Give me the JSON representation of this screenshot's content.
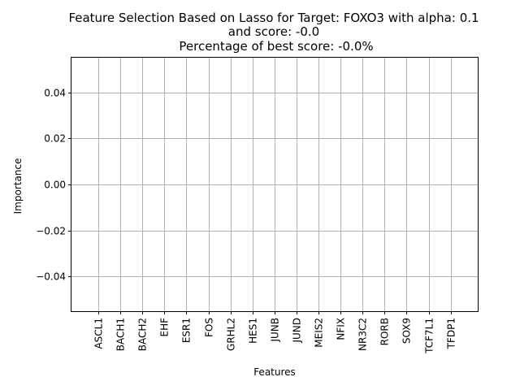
{
  "chart_data": {
    "type": "bar",
    "title_lines": [
      "Feature Selection Based on Lasso for Target: FOXO3 with alpha: 0.1",
      "and score: -0.0",
      "Percentage of best score: -0.0%"
    ],
    "xlabel": "Features",
    "ylabel": "Importance",
    "categories": [
      "ASCL1",
      "BACH1",
      "BACH2",
      "EHF",
      "ESR1",
      "FOS",
      "GRHL2",
      "HES1",
      "JUNB",
      "JUND",
      "MEIS2",
      "NFIX",
      "NR3C2",
      "RORB",
      "SOX9",
      "TCF7L1",
      "TFDP1"
    ],
    "values": [
      0,
      0,
      0,
      0,
      0,
      0,
      0,
      0,
      0,
      0,
      0,
      0,
      0,
      0,
      0,
      0,
      0
    ],
    "ylim": [
      -0.055,
      0.055
    ],
    "yticks": [
      -0.04,
      -0.02,
      0.0,
      0.02,
      0.04
    ],
    "ytick_labels": [
      "−0.04",
      "−0.02",
      "0.00",
      "0.02",
      "0.04"
    ],
    "grid": true,
    "colors": {
      "grid": "#b0b0b0",
      "axes": "#000000",
      "bar": "#1f77b4"
    }
  }
}
